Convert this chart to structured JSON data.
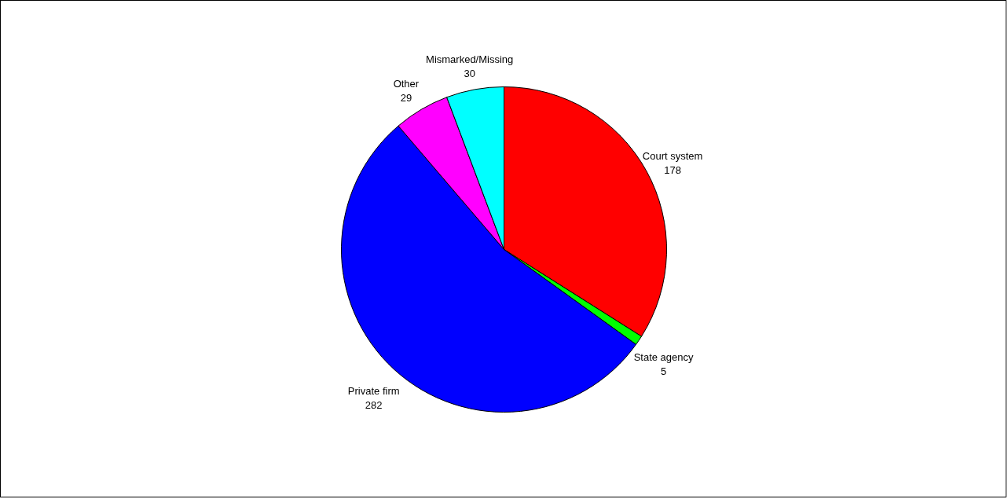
{
  "chart_data": {
    "type": "pie",
    "categories": [
      "Court system",
      "State agency",
      "Private firm",
      "Other",
      "Mismarked/Missing"
    ],
    "values": [
      178,
      5,
      282,
      29,
      30
    ],
    "colors": [
      "#ff0000",
      "#00ff00",
      "#0000ff",
      "#ff00ff",
      "#00ffff"
    ],
    "data_labels": true
  }
}
